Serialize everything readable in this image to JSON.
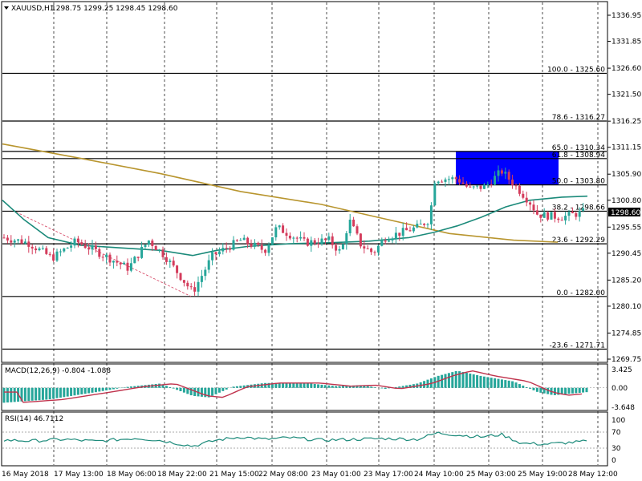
{
  "header": {
    "symbol_timeframe": "XAUUSD,H1",
    "ohlc": "1298.75 1299.25 1298.45 1298.60"
  },
  "price_axis": {
    "ticks": [
      "1336.95",
      "1331.85",
      "1326.60",
      "1321.50",
      "1316.25",
      "1311.15",
      "1305.90",
      "1300.80",
      "1295.55",
      "1290.45",
      "1285.20",
      "1280.10",
      "1274.85",
      "1269.75"
    ],
    "current_price": "1298.60"
  },
  "fib_levels": [
    {
      "label": "100.0 - 1325.60",
      "price": 1325.6
    },
    {
      "label": "78.6 - 1316.27",
      "price": 1316.27
    },
    {
      "label": "65.0 - 1310.34",
      "price": 1310.34
    },
    {
      "label": "61.8 - 1308.94",
      "price": 1308.94
    },
    {
      "label": "50.0 - 1303.80",
      "price": 1303.8
    },
    {
      "label": "38.2 - 1298.66",
      "price": 1298.66
    },
    {
      "label": "23.6 - 1292.29",
      "price": 1292.29
    },
    {
      "label": "0.0 - 1282.00",
      "price": 1282.0
    },
    {
      "label": "-23.6 - 1271.71",
      "price": 1271.71
    }
  ],
  "macd": {
    "label": "MACD(12,26,9) -0.804 -1.088",
    "ticks": [
      "3.425",
      "0.00",
      "-3.648"
    ]
  },
  "rsi": {
    "label": "RSI(14) 46.7112",
    "ticks": [
      "100",
      "70",
      "30",
      "0"
    ]
  },
  "time_axis": {
    "labels": [
      "16 May 2018",
      "17 May 13:00",
      "18 May 06:00",
      "18 May 22:00",
      "21 May 15:00",
      "22 May 08:00",
      "23 May 01:00",
      "23 May 17:00",
      "24 May 10:00",
      "25 May 03:00",
      "25 May 19:00",
      "28 May 12:00"
    ]
  },
  "colors": {
    "bull": "#26a69a",
    "bear": "#d43c5c",
    "ma_fast": "#1b8a7a",
    "ma_slow": "#b8952e",
    "zone": "#0000ff",
    "macd_line": "#c0334d",
    "rsi_line": "#1b8a7a",
    "level_line": "#3cb371"
  },
  "chart_data": {
    "type": "candlestick",
    "symbol": "XAUUSD",
    "timeframe": "H1",
    "close_path": [
      {
        "t": "16 May 2018",
        "price": 1293.5
      },
      {
        "t": "17 May 13:00",
        "price": 1291.0
      },
      {
        "t": "18 May 06:00",
        "price": 1289.0
      },
      {
        "t": "18 May 22:00",
        "price": 1283.0
      },
      {
        "t": "21 May 15:00",
        "price": 1292.0
      },
      {
        "t": "22 May 08:00",
        "price": 1293.0
      },
      {
        "t": "23 May 01:00",
        "price": 1292.0
      },
      {
        "t": "23 May 17:00",
        "price": 1294.0
      },
      {
        "t": "24 May 10:00",
        "price": 1305.0
      },
      {
        "t": "25 May 03:00",
        "price": 1304.0
      },
      {
        "t": "25 May 19:00",
        "price": 1298.0
      },
      {
        "t": "28 May 12:00",
        "price": 1298.6
      }
    ],
    "ylim": [
      1269.75,
      1336.95
    ]
  }
}
